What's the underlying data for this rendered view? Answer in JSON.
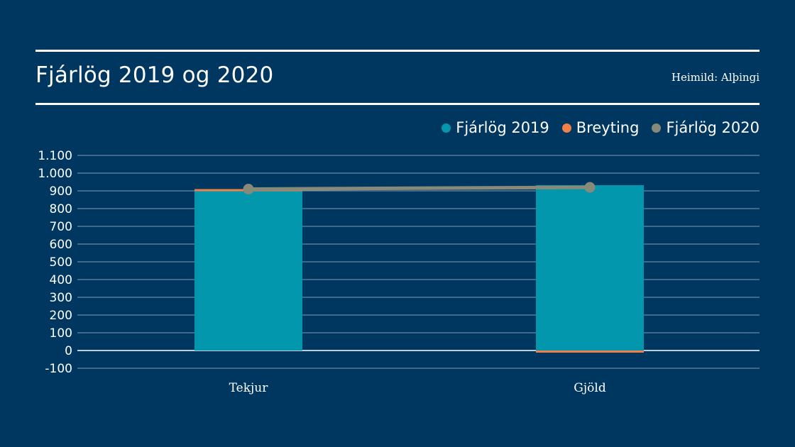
{
  "header": {
    "title": "Fjárlög 2019 og 2020",
    "source": "Heimild: Alþingi"
  },
  "legend": [
    {
      "label": "Fjárlög 2019",
      "color": "#0397ad"
    },
    {
      "label": "Breyting",
      "color": "#f08048"
    },
    {
      "label": "Fjárlög 2020",
      "color": "#888a79"
    }
  ],
  "chart_data": {
    "type": "bar",
    "title": "Fjárlög 2019 og 2020",
    "xlabel": "",
    "ylabel": "",
    "categories": [
      "Tekjur",
      "Gjöld"
    ],
    "series": [
      {
        "name": "Fjárlög 2019",
        "type": "bar",
        "stacked": true,
        "color": "#0397ad",
        "values": [
          898,
          932
        ]
      },
      {
        "name": "Breyting",
        "type": "bar",
        "stacked": true,
        "color": "#f08048",
        "values": [
          12,
          -12
        ]
      },
      {
        "name": "Fjárlög 2020",
        "type": "line",
        "color": "#888a79",
        "values": [
          910,
          920
        ]
      }
    ],
    "ylim": [
      -100,
      1100
    ],
    "yticks": [
      1100,
      1000,
      900,
      800,
      700,
      600,
      500,
      400,
      300,
      200,
      100,
      0,
      -100
    ],
    "ytick_labels": [
      "1.100",
      "1.000",
      "900",
      "800",
      "700",
      "600",
      "500",
      "400",
      "300",
      "200",
      "100",
      "0",
      "-100"
    ],
    "grid": true,
    "legend_position": "top-right"
  }
}
